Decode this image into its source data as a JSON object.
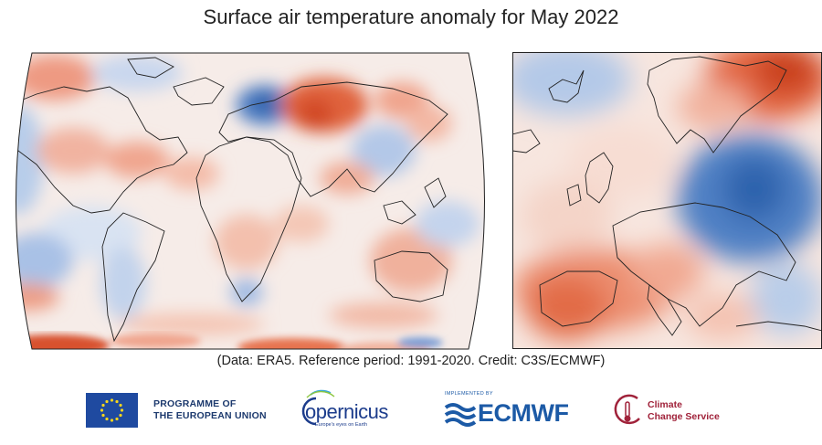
{
  "title": "Surface air temperature anomaly for May 2022",
  "credit": "(Data: ERA5.  Reference period: 1991-2020.  Credit: C3S/ECMWF)",
  "maps": {
    "world": {
      "projection": "robinson",
      "region": "global"
    },
    "europe": {
      "projection": "regional",
      "region": "Europe"
    }
  },
  "colors": {
    "warm": "#e2603a",
    "warm_light": "#f6c3ad",
    "cool": "#3a6fb8",
    "cool_light": "#c5d6ee",
    "neutral": "#f8f3f1",
    "coast": "#222222"
  },
  "logos": {
    "eu": {
      "line1": "PROGRAMME OF",
      "line2": "THE EUROPEAN UNION"
    },
    "copernicus": {
      "name": "opernicus",
      "tagline": "Europe's eyes on Earth"
    },
    "ecmwf": {
      "implemented_by": "IMPLEMENTED BY",
      "name": "ECMWF"
    },
    "c3s": {
      "line1": "Climate",
      "line2": "Change Service"
    }
  },
  "icons": {
    "eu_flag": "eu-flag-icon",
    "copernicus": "copernicus-logo-icon",
    "ecmwf": "ecmwf-logo-icon",
    "c3s": "c3s-logo-icon"
  }
}
